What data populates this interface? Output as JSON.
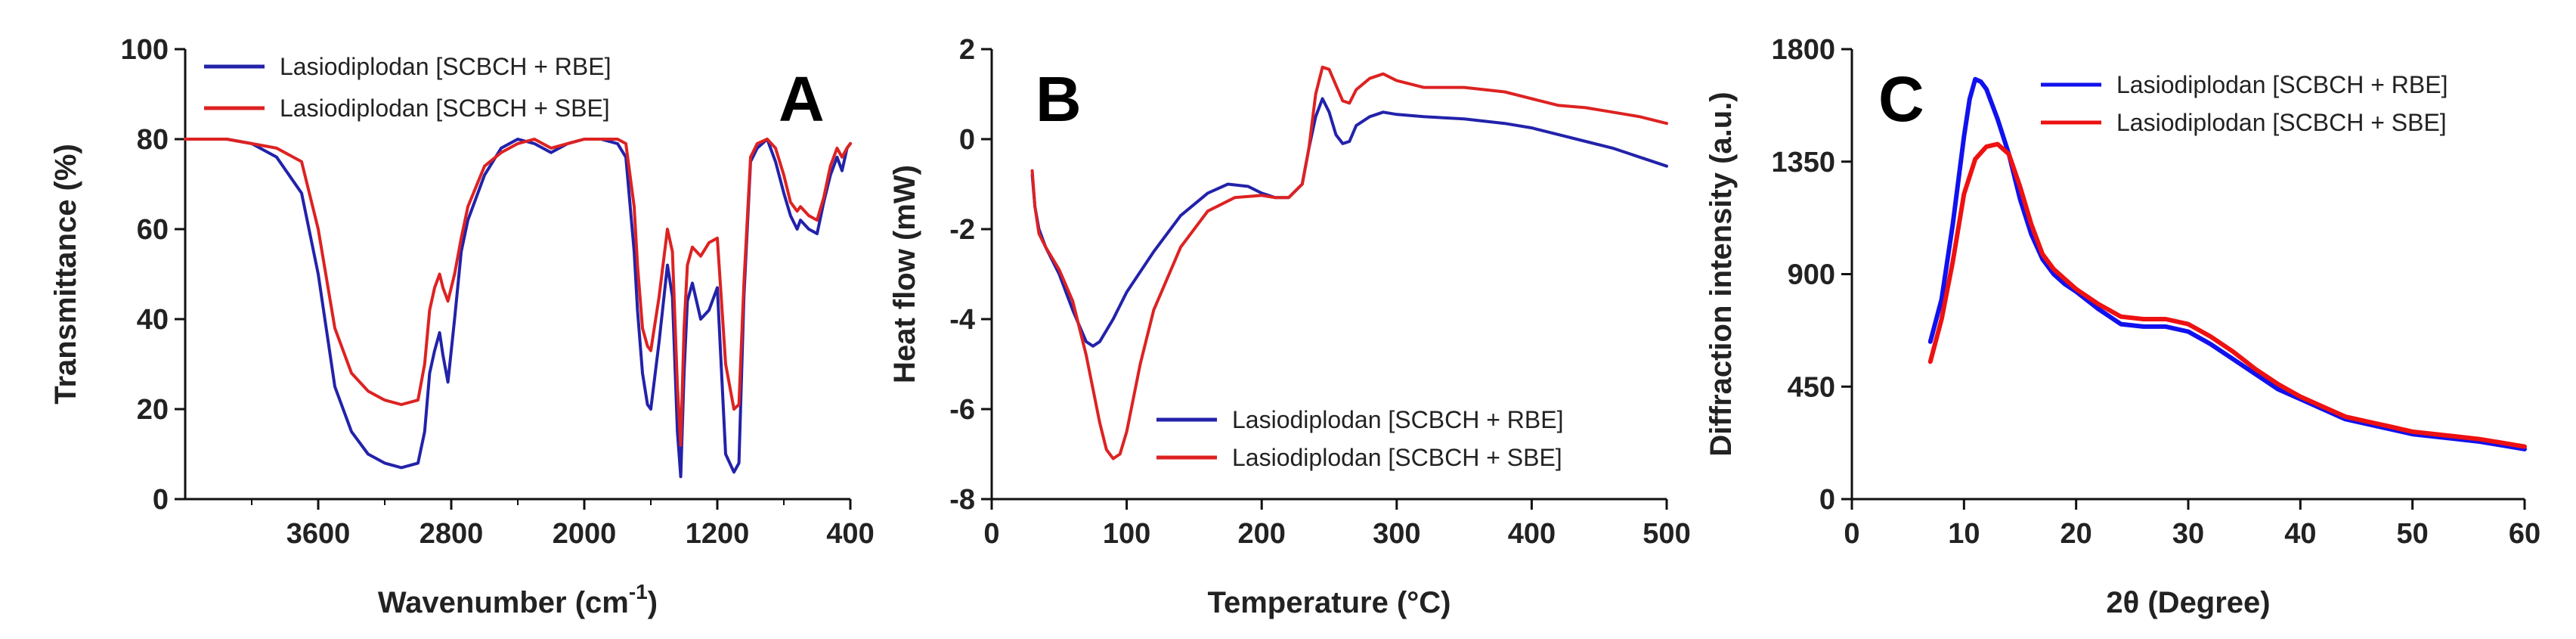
{
  "chart_data": [
    {
      "type": "line",
      "panel": "A",
      "xlabel": "Wavenumber (cm",
      "xlabel_sup": "-1",
      "xlabel_close": ")",
      "ylabel": "Transmittance (%)",
      "xlim": [
        4400,
        400
      ],
      "ylim": [
        0,
        100
      ],
      "xticks": [
        3600,
        2800,
        2000,
        1200,
        400
      ],
      "yticks": [
        0,
        20,
        40,
        60,
        80,
        100
      ],
      "legend_position": "top-left",
      "series": [
        {
          "name": "Lasiodiplodan [SCBCH + RBE]",
          "color": "#2222aa",
          "x": [
            4400,
            4150,
            4000,
            3850,
            3700,
            3600,
            3500,
            3400,
            3300,
            3200,
            3100,
            3000,
            2960,
            2930,
            2900,
            2870,
            2850,
            2820,
            2780,
            2740,
            2700,
            2600,
            2500,
            2400,
            2300,
            2200,
            2100,
            2000,
            1900,
            1800,
            1750,
            1700,
            1680,
            1650,
            1620,
            1600,
            1550,
            1500,
            1470,
            1440,
            1420,
            1400,
            1380,
            1350,
            1300,
            1250,
            1200,
            1150,
            1100,
            1070,
            1040,
            1000,
            960,
            900,
            850,
            800,
            760,
            720,
            700,
            650,
            600,
            560,
            520,
            480,
            450,
            420,
            400
          ],
          "y": [
            80,
            80,
            79,
            76,
            68,
            50,
            25,
            15,
            10,
            8,
            7,
            8,
            15,
            28,
            33,
            37,
            32,
            26,
            40,
            55,
            62,
            72,
            78,
            80,
            79,
            77,
            79,
            80,
            80,
            79,
            76,
            55,
            42,
            28,
            21,
            20,
            35,
            52,
            45,
            15,
            5,
            28,
            44,
            48,
            40,
            42,
            47,
            10,
            6,
            8,
            45,
            75,
            78,
            80,
            75,
            68,
            63,
            60,
            62,
            60,
            59,
            66,
            72,
            76,
            73,
            78,
            79
          ]
        },
        {
          "name": "Lasiodiplodan [SCBCH + SBE]",
          "color": "#dd2222",
          "x": [
            4400,
            4150,
            4000,
            3850,
            3700,
            3600,
            3500,
            3400,
            3300,
            3200,
            3100,
            3000,
            2960,
            2930,
            2900,
            2870,
            2850,
            2820,
            2780,
            2740,
            2700,
            2600,
            2500,
            2400,
            2300,
            2200,
            2100,
            2000,
            1900,
            1800,
            1750,
            1700,
            1680,
            1650,
            1620,
            1600,
            1550,
            1500,
            1470,
            1440,
            1420,
            1400,
            1380,
            1350,
            1300,
            1250,
            1200,
            1150,
            1100,
            1070,
            1040,
            1000,
            960,
            900,
            850,
            800,
            760,
            720,
            700,
            650,
            600,
            560,
            520,
            480,
            450,
            420,
            400
          ],
          "y": [
            80,
            80,
            79,
            78,
            75,
            60,
            38,
            28,
            24,
            22,
            21,
            22,
            30,
            42,
            47,
            50,
            47,
            44,
            50,
            58,
            65,
            74,
            77,
            79,
            80,
            78,
            79,
            80,
            80,
            80,
            79,
            65,
            52,
            38,
            34,
            33,
            45,
            60,
            55,
            25,
            12,
            38,
            52,
            56,
            54,
            57,
            58,
            30,
            20,
            21,
            48,
            76,
            79,
            80,
            78,
            72,
            66,
            64,
            65,
            63,
            62,
            67,
            74,
            78,
            76,
            78,
            79
          ]
        }
      ]
    },
    {
      "type": "line",
      "panel": "B",
      "xlabel": "Temperature (°C)",
      "ylabel": "Heat flow (mW)",
      "xlim": [
        0,
        500
      ],
      "ylim": [
        -8,
        2
      ],
      "xticks": [
        0,
        100,
        200,
        300,
        400,
        500
      ],
      "yticks": [
        -8,
        -6,
        -4,
        -2,
        0,
        2
      ],
      "legend_position": "bottom-right",
      "series": [
        {
          "name": "Lasiodiplodan [SCBCH + RBE]",
          "color": "#2222aa",
          "x": [
            30,
            32,
            35,
            40,
            50,
            60,
            70,
            75,
            80,
            90,
            100,
            120,
            140,
            160,
            175,
            190,
            200,
            210,
            220,
            230,
            235,
            240,
            245,
            250,
            255,
            260,
            265,
            270,
            280,
            290,
            300,
            320,
            350,
            380,
            400,
            420,
            440,
            460,
            480,
            500
          ],
          "y": [
            -0.8,
            -1.5,
            -2.0,
            -2.4,
            -3.0,
            -3.8,
            -4.5,
            -4.6,
            -4.5,
            -4.0,
            -3.4,
            -2.5,
            -1.7,
            -1.2,
            -1.0,
            -1.05,
            -1.2,
            -1.3,
            -1.3,
            -1.0,
            -0.2,
            0.5,
            0.9,
            0.6,
            0.1,
            -0.1,
            -0.05,
            0.3,
            0.5,
            0.6,
            0.55,
            0.5,
            0.45,
            0.35,
            0.25,
            0.1,
            -0.05,
            -0.2,
            -0.4,
            -0.6
          ]
        },
        {
          "name": "Lasiodiplodan [SCBCH + SBE]",
          "color": "#dd2222",
          "x": [
            30,
            32,
            35,
            40,
            50,
            60,
            70,
            80,
            85,
            90,
            95,
            100,
            110,
            120,
            140,
            160,
            180,
            200,
            210,
            220,
            230,
            235,
            240,
            245,
            250,
            255,
            260,
            265,
            270,
            280,
            290,
            300,
            320,
            350,
            380,
            400,
            420,
            440,
            460,
            480,
            500
          ],
          "y": [
            -0.7,
            -1.5,
            -2.1,
            -2.4,
            -2.9,
            -3.6,
            -4.8,
            -6.3,
            -6.9,
            -7.1,
            -7.0,
            -6.5,
            -5.0,
            -3.8,
            -2.4,
            -1.6,
            -1.3,
            -1.25,
            -1.3,
            -1.3,
            -1.0,
            -0.2,
            1.0,
            1.6,
            1.55,
            1.2,
            0.85,
            0.8,
            1.1,
            1.35,
            1.45,
            1.3,
            1.15,
            1.15,
            1.05,
            0.9,
            0.75,
            0.7,
            0.6,
            0.5,
            0.35
          ]
        }
      ]
    },
    {
      "type": "line",
      "panel": "C",
      "xlabel": "2θ (Degree)",
      "ylabel": "Diffraction intensity (a.u.)",
      "xlim": [
        0,
        60
      ],
      "ylim": [
        0,
        1800
      ],
      "xticks": [
        0,
        10,
        20,
        30,
        40,
        50,
        60
      ],
      "yticks": [
        0,
        450,
        900,
        1350,
        1800
      ],
      "legend_position": "top-right",
      "series": [
        {
          "name": "Lasiodiplodan [SCBCH + RBE]",
          "color": "#1111ee",
          "x": [
            7,
            8,
            9,
            10,
            10.5,
            11,
            11.5,
            12,
            13,
            14,
            15,
            16,
            17,
            18,
            19,
            20,
            22,
            24,
            26,
            28,
            30,
            32,
            34,
            36,
            38,
            40,
            42,
            44,
            46,
            48,
            50,
            52,
            54,
            56,
            58,
            60
          ],
          "y": [
            630,
            800,
            1100,
            1450,
            1600,
            1680,
            1670,
            1640,
            1520,
            1380,
            1200,
            1060,
            960,
            900,
            860,
            830,
            760,
            700,
            690,
            690,
            670,
            620,
            560,
            500,
            440,
            400,
            360,
            320,
            300,
            280,
            260,
            250,
            240,
            230,
            215,
            200
          ]
        },
        {
          "name": "Lasiodiplodan [SCBCH + SBE]",
          "color": "#ee1111",
          "x": [
            7,
            8,
            9,
            10,
            11,
            12,
            13,
            14,
            15,
            16,
            17,
            18,
            19,
            20,
            22,
            24,
            26,
            28,
            30,
            32,
            34,
            36,
            38,
            40,
            42,
            44,
            46,
            48,
            50,
            52,
            54,
            56,
            58,
            60
          ],
          "y": [
            550,
            720,
            950,
            1220,
            1360,
            1410,
            1420,
            1380,
            1250,
            1100,
            980,
            920,
            880,
            840,
            780,
            730,
            720,
            720,
            700,
            650,
            590,
            520,
            460,
            410,
            370,
            330,
            310,
            290,
            270,
            260,
            250,
            240,
            225,
            210
          ]
        }
      ]
    }
  ]
}
